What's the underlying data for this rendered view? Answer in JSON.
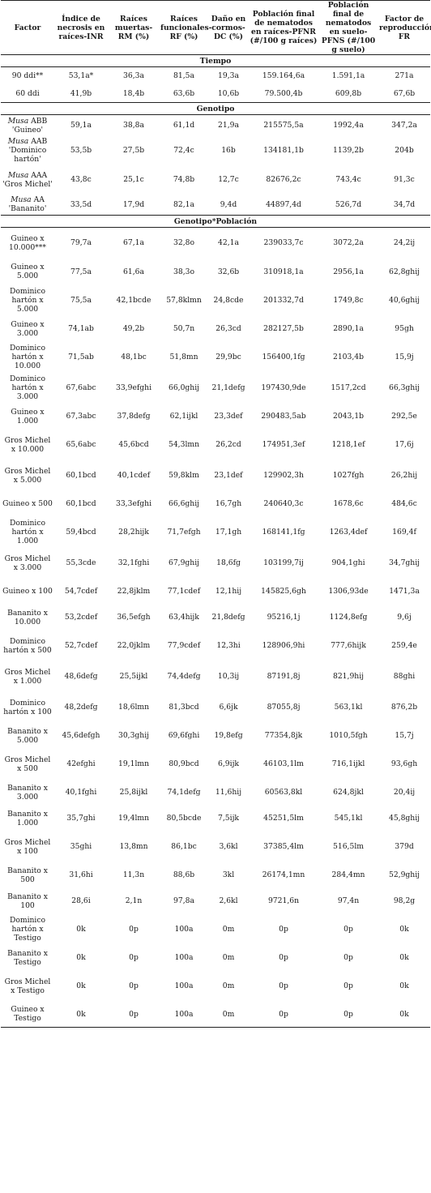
{
  "headers": [
    "Factor",
    "Índice de necrosis en raíces-INR",
    "Raíces muertas-RM (%)",
    "Raíces funcionales-RF (%)",
    "Daño en cormos-DC (%)",
    "Población final de nematodos en raíces-PFNR (#/100 g raíces)",
    "Población final de nematodos en suelo-PFNS (#/100 g suelo)",
    "Factor de reproducción-FR"
  ],
  "sections": [
    {
      "title": "Tiempo",
      "rows": [
        {
          "factor": "90 ddi**",
          "v": [
            "53,1a*",
            "36,3a",
            "81,5a",
            "19,3a",
            "159.164,6a",
            "1.591,1a",
            "271a"
          ]
        },
        {
          "factor": "60 ddi",
          "v": [
            "41,9b",
            "18,4b",
            "63,6b",
            "10,6b",
            "79.500,4b",
            "609,8b",
            "67,6b"
          ]
        }
      ]
    },
    {
      "title": "Genotipo",
      "rows": [
        {
          "italic": "Musa",
          "factor": "ABB 'Guineo'",
          "v": [
            "59,1a",
            "38,8a",
            "61,1d",
            "21,9a",
            "215575,5a",
            "1992,4a",
            "347,2a"
          ]
        },
        {
          "italic": "Musa",
          "factor": "AAB 'Dominico hartón'",
          "v": [
            "53,5b",
            "27,5b",
            "72,4c",
            "16b",
            "134181,1b",
            "1139,2b",
            "204b"
          ]
        },
        {
          "italic": "Musa",
          "factor": "AAA 'Gros Michel'",
          "v": [
            "43,8c",
            "25,1c",
            "74,8b",
            "12,7c",
            "82676,2c",
            "743,4c",
            "91,3c"
          ]
        },
        {
          "italic": "Musa",
          "factor": "AA 'Bananito'",
          "v": [
            "33,5d",
            "17,9d",
            "82,1a",
            "9,4d",
            "44897,4d",
            "526,7d",
            "34,7d"
          ]
        }
      ]
    },
    {
      "title": "Genotipo*Población",
      "rows": [
        {
          "factor": "Guineo x 10.000***",
          "v": [
            "79,7a",
            "67,1a",
            "32,8o",
            "42,1a",
            "239033,7c",
            "3072,2a",
            "24,2ij"
          ]
        },
        {
          "factor": "Guineo x 5.000",
          "v": [
            "77,5a",
            "61,6a",
            "38,3o",
            "32,6b",
            "310918,1a",
            "2956,1a",
            "62,8ghij"
          ]
        },
        {
          "factor": "Dominico hartón x 5.000",
          "v": [
            "75,5a",
            "42,1bcde",
            "57,8klmn",
            "24,8cde",
            "201332,7d",
            "1749,8c",
            "40,6ghij"
          ]
        },
        {
          "factor": "Guineo x 3.000",
          "v": [
            "74,1ab",
            "49,2b",
            "50,7n",
            "26,3cd",
            "282127,5b",
            "2890,1a",
            "95gh"
          ]
        },
        {
          "factor": "Dominico hartón x 10.000",
          "v": [
            "71,5ab",
            "48,1bc",
            "51,8mn",
            "29,9bc",
            "156400,1fg",
            "2103,4b",
            "15,9j"
          ]
        },
        {
          "factor": "Dominico hartón x 3.000",
          "v": [
            "67,6abc",
            "33,9efghi",
            "66,0ghij",
            "21,1defg",
            "197430,9de",
            "1517,2cd",
            "66,3ghij"
          ]
        },
        {
          "factor": "Guineo x 1.000",
          "v": [
            "67,3abc",
            "37,8defg",
            "62,1ijkl",
            "23,3def",
            "290483,5ab",
            "2043,1b",
            "292,5e"
          ]
        },
        {
          "factor": "Gros Michel x 10.000",
          "v": [
            "65,6abc",
            "45,6bcd",
            "54,3lmn",
            "26,2cd",
            "174951,3ef",
            "1218,1ef",
            "17,6j"
          ]
        },
        {
          "factor": "Gros Michel x 5.000",
          "v": [
            "60,1bcd",
            "40,1cdef",
            "59,8klm",
            "23,1def",
            "129902,3h",
            "1027fgh",
            "26,2hij"
          ]
        },
        {
          "factor": "Guineo x 500",
          "v": [
            "60,1bcd",
            "33,3efghi",
            "66,6ghij",
            "16,7gh",
            "240640,3c",
            "1678,6c",
            "484,6c"
          ]
        },
        {
          "factor": "Dominico hartón x 1.000",
          "v": [
            "59,4bcd",
            "28,2hijk",
            "71,7efgh",
            "17,1gh",
            "168141,1fg",
            "1263,4def",
            "169,4f"
          ]
        },
        {
          "factor": "Gros Michel x 3.000",
          "v": [
            "55,3cde",
            "32,1fghi",
            "67,9ghij",
            "18,6fg",
            "103199,7ij",
            "904,1ghi",
            "34,7ghij"
          ]
        },
        {
          "factor": "Guineo x 100",
          "v": [
            "54,7cdef",
            "22,8jklm",
            "77,1cdef",
            "12,1hij",
            "145825,6gh",
            "1306,93de",
            "1471,3a"
          ]
        },
        {
          "factor": "Bananito x 10.000",
          "v": [
            "53,2cdef",
            "36,5efgh",
            "63,4hijk",
            "21,8defg",
            "95216,1j",
            "1124,8efg",
            "9,6j"
          ]
        },
        {
          "factor": "Dominico hartón x 500",
          "v": [
            "52,7cdef",
            "22,0jklm",
            "77,9cdef",
            "12,3hi",
            "128906,9hi",
            "777,6hijk",
            "259,4e"
          ]
        },
        {
          "factor": "Gros Michel x 1.000",
          "v": [
            "48,6defg",
            "25,5ijkl",
            "74,4defg",
            "10,3ij",
            "87191,8j",
            "821,9hij",
            "88ghi"
          ]
        },
        {
          "factor": "Dominico hartón x 100",
          "v": [
            "48,2defg",
            "18,6lmn",
            "81,3bcd",
            "6,6jk",
            "87055,8j",
            "563,1kl",
            "876,2b"
          ]
        },
        {
          "factor": "Bananito x 5.000",
          "v": [
            "45,6defgh",
            "30,3ghij",
            "69,6fghi",
            "19,8efg",
            "77354,8jk",
            "1010,5fgh",
            "15,7j"
          ]
        },
        {
          "factor": "Gros Michel x 500",
          "v": [
            "42efghi",
            "19,1lmn",
            "80,9bcd",
            "6,9ijk",
            "46103,1lm",
            "716,1ijkl",
            "93,6gh"
          ]
        },
        {
          "factor": "Bananito x 3.000",
          "v": [
            "40,1fghi",
            "25,8ijkl",
            "74,1defg",
            "11,6hij",
            "60563,8kl",
            "624,8jkl",
            "20,4ij"
          ]
        },
        {
          "factor": "Bananito x 1.000",
          "v": [
            "35,7ghi",
            "19,4lmn",
            "80,5bcde",
            "7,5ijk",
            "45251,5lm",
            "545,1kl",
            "45,8ghij"
          ]
        },
        {
          "factor": "Gros Michel x 100",
          "v": [
            "35ghi",
            "13,8mn",
            "86,1bc",
            "3,6kl",
            "37385,4lm",
            "516,5lm",
            "379d"
          ]
        },
        {
          "factor": "Bananito x 500",
          "v": [
            "31,6hi",
            "11,3n",
            "88,6b",
            "3kl",
            "26174,1mn",
            "284,4mn",
            "52,9ghij"
          ]
        },
        {
          "factor": "Bananito x 100",
          "v": [
            "28,6i",
            "2,1n",
            "97,8a",
            "2,6kl",
            "9721,6n",
            "97,4n",
            "98,2g"
          ]
        },
        {
          "factor": "Dominico hartón x Testigo",
          "v": [
            "0k",
            "0p",
            "100a",
            "0m",
            "0p",
            "0p",
            "0k"
          ]
        },
        {
          "factor": "Bananito x Testigo",
          "v": [
            "0k",
            "0p",
            "100a",
            "0m",
            "0p",
            "0p",
            "0k"
          ]
        },
        {
          "factor": "Gros Michel x Testigo",
          "v": [
            "0k",
            "0p",
            "100a",
            "0m",
            "0p",
            "0p",
            "0k"
          ]
        },
        {
          "factor": "Guineo x Testigo",
          "v": [
            "0k",
            "0p",
            "100a",
            "0m",
            "0p",
            "0p",
            "0k"
          ]
        }
      ]
    }
  ]
}
